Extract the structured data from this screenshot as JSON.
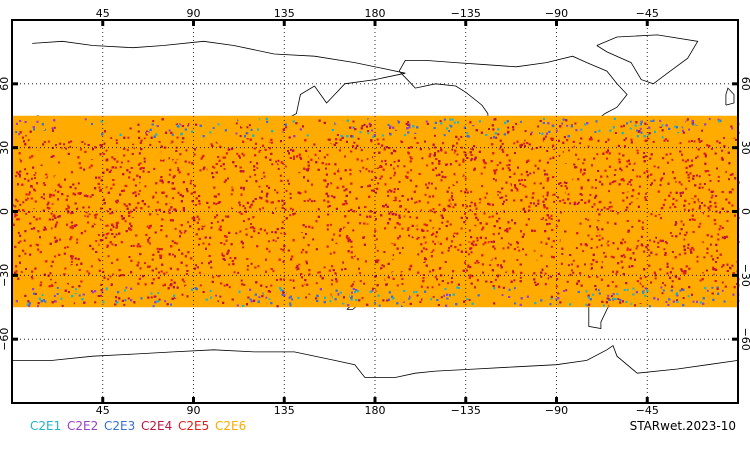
{
  "map": {
    "projection": "equirectangular",
    "center_longitude": 180,
    "lon_range": [
      0,
      360
    ],
    "lat_range": [
      -90,
      90
    ],
    "data_lat_band": [
      -45,
      45
    ],
    "grid": "dotted",
    "lon_ticks": [
      {
        "lon": 45,
        "label": "45"
      },
      {
        "lon": 90,
        "label": "90"
      },
      {
        "lon": 135,
        "label": "135"
      },
      {
        "lon": 180,
        "label": "180"
      },
      {
        "lon": 225,
        "label": "−135"
      },
      {
        "lon": 270,
        "label": "−90"
      },
      {
        "lon": 315,
        "label": "−45"
      }
    ],
    "lat_ticks": [
      {
        "lat": 60,
        "label": "60"
      },
      {
        "lat": 30,
        "label": "30"
      },
      {
        "lat": 0,
        "label": "0"
      },
      {
        "lat": -30,
        "label": "−30"
      },
      {
        "lat": -60,
        "label": "−60"
      }
    ]
  },
  "legend": [
    {
      "label": "C2E1",
      "color": "#1fb5c7"
    },
    {
      "label": "C2E2",
      "color": "#9b3fc9"
    },
    {
      "label": "C2E3",
      "color": "#3a6fd8"
    },
    {
      "label": "C2E4",
      "color": "#c0143c"
    },
    {
      "label": "C2E5",
      "color": "#e0201a"
    },
    {
      "label": "C2E6",
      "color": "#ffab00"
    }
  ],
  "credit": "STARwet.2023-10"
}
